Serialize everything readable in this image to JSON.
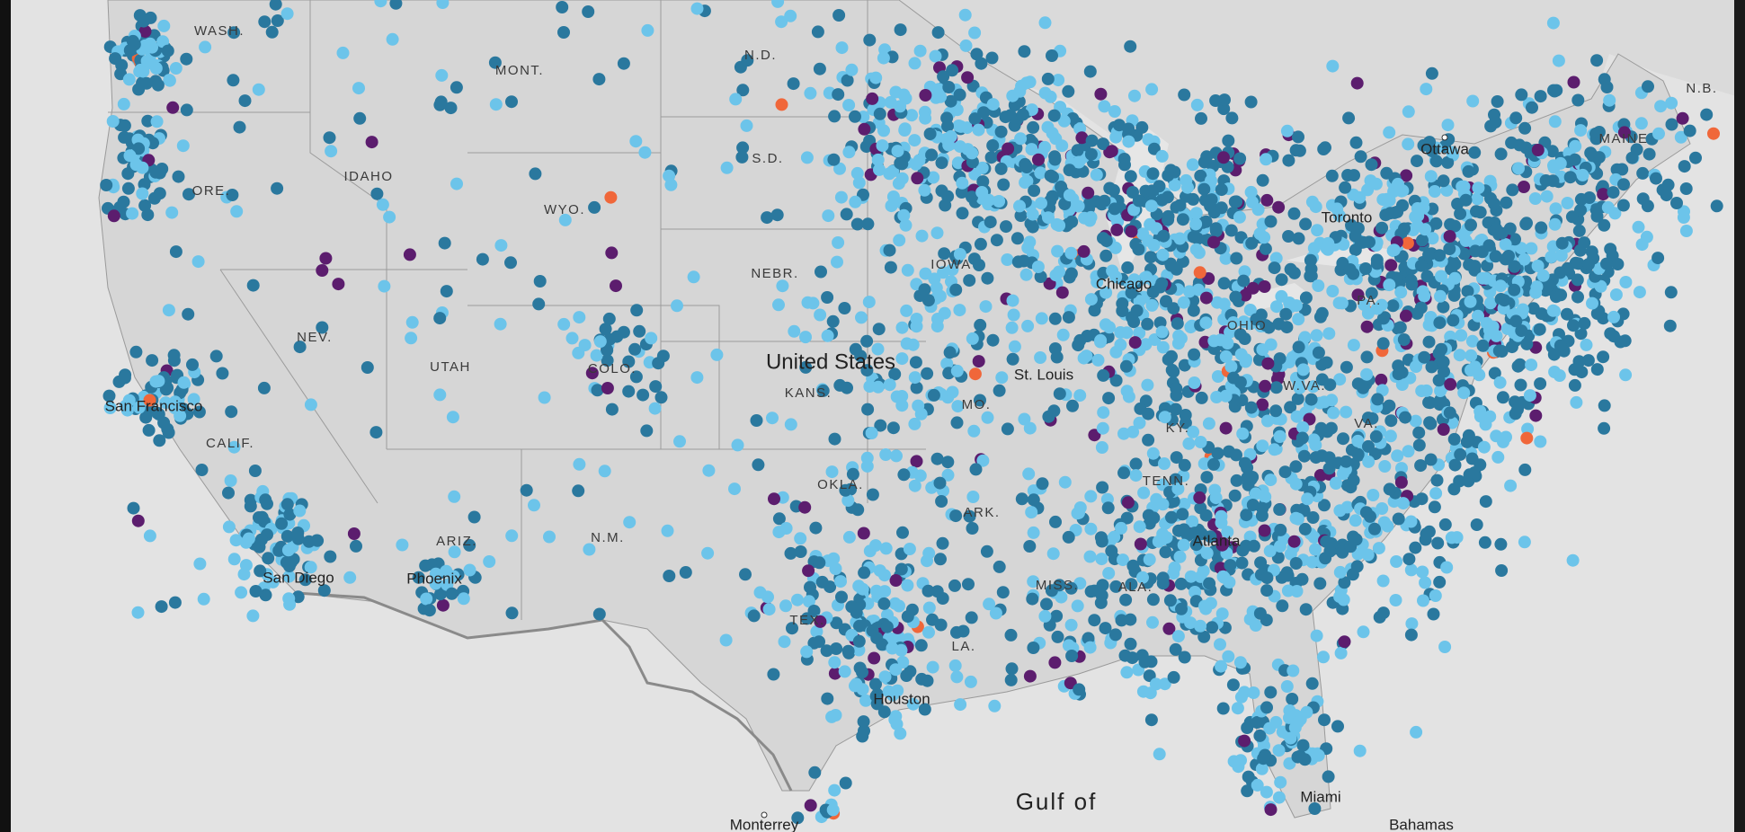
{
  "labels": {
    "states": [
      "WASH.",
      "MONT.",
      "N.D.",
      "S.D.",
      "IDAHO",
      "ORE.",
      "WYO.",
      "NEBR.",
      "NEV.",
      "UTAH",
      "COLO.",
      "KANS.",
      "MO.",
      "IOWA",
      "CALIF.",
      "ARIZ.",
      "N.M.",
      "OKLA.",
      "ARK.",
      "MISS.",
      "TEX.",
      "LA.",
      "W.VA.",
      "KY.",
      "OHIO",
      "PA.",
      "VA.",
      "TENN.",
      "ALA.",
      "MAINE",
      "N.B."
    ],
    "country": "United States",
    "cities": [
      "Ottawa",
      "Toronto",
      "San Francisco",
      "San Diego",
      "Phoenix",
      "Houston",
      "Miami",
      "St. Louis",
      "Chicago",
      "Atlanta",
      "Monterrey",
      "Bahamas"
    ],
    "sea": "Gulf of"
  }
}
